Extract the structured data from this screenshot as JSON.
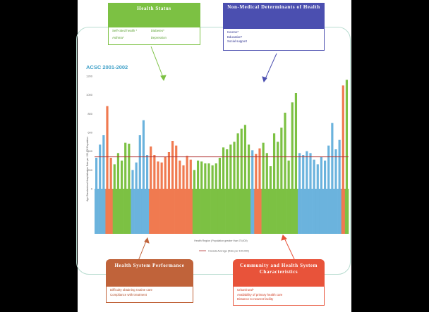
{
  "colors": {
    "health": "#7cc143",
    "nonmedical": "#4b4fb0",
    "system": "#c0633a",
    "community": "#e8533a",
    "blue_bar": "#6bb3dd",
    "green_bar": "#7cc143",
    "orange_bar": "#f07a50",
    "avg_line": "#b03030"
  },
  "boxes": {
    "health_status": {
      "title": "Health Status",
      "items": [
        "Self-rated health *",
        "Diabetes*",
        "Asthma*",
        "Depression"
      ]
    },
    "non_medical": {
      "title": "Non-Medical Determinants of Health",
      "items": [
        "Income*",
        "Education*",
        "Social support"
      ]
    },
    "system_performance": {
      "title": "Health System Performance",
      "items": [
        "Difficulty obtaining routine care",
        "Compliance with treatment"
      ]
    },
    "community": {
      "title": "Community and Health System Characteristics",
      "items": [
        "Urban/rural*",
        "Availability of primary health care",
        "Distance to nearest facility"
      ]
    }
  },
  "chart_data": {
    "type": "bar",
    "title": "ACSC 2001-2002",
    "ylabel": "Age-Standardized Hospitalization Rate per 100,000 Population",
    "xlabel": "Health Region (Population greater than 75,000)",
    "legend": [
      "Canada Average (Rate per 100,000)"
    ],
    "ylim": [
      0,
      1200
    ],
    "yticks": [
      "1200",
      "1000",
      "800",
      "600",
      "400",
      "200",
      "0"
    ],
    "average": 340,
    "values": [
      330,
      470,
      570,
      880,
      330,
      260,
      380,
      300,
      490,
      480,
      200,
      280,
      570,
      730,
      360,
      450,
      360,
      290,
      280,
      340,
      390,
      510,
      460,
      300,
      250,
      350,
      310,
      200,
      300,
      290,
      270,
      270,
      250,
      270,
      330,
      440,
      420,
      470,
      500,
      590,
      640,
      680,
      470,
      410,
      370,
      430,
      490,
      380,
      240,
      590,
      500,
      650,
      810,
      300,
      920,
      1020,
      380,
      360,
      400,
      380,
      310,
      260,
      340,
      300,
      460,
      700,
      420,
      520,
      1100,
      1160
    ],
    "groups": [
      "blue",
      "blue",
      "blue",
      "orange",
      "orange",
      "green",
      "green",
      "green",
      "green",
      "green",
      "blue",
      "blue",
      "blue",
      "blue",
      "blue",
      "orange",
      "orange",
      "orange",
      "orange",
      "orange",
      "orange",
      "orange",
      "orange",
      "orange",
      "orange",
      "orange",
      "orange",
      "green",
      "green",
      "green",
      "green",
      "green",
      "green",
      "green",
      "green",
      "green",
      "green",
      "green",
      "green",
      "green",
      "green",
      "green",
      "green",
      "blue",
      "orange",
      "orange",
      "green",
      "green",
      "green",
      "green",
      "green",
      "green",
      "green",
      "green",
      "green",
      "green",
      "blue",
      "blue",
      "blue",
      "blue",
      "blue",
      "blue",
      "blue",
      "blue",
      "blue",
      "blue",
      "blue",
      "blue",
      "orange",
      "green"
    ]
  }
}
